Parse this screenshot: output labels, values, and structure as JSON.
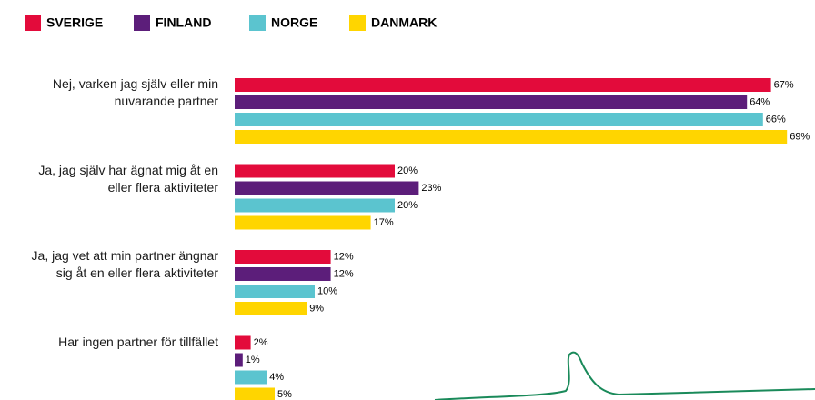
{
  "chart_data": {
    "type": "bar",
    "orientation": "horizontal",
    "categories": [
      "Nej, varken jag själv eller min nuvarande partner",
      "Ja, jag själv har ägnat mig åt en eller flera aktiviteter",
      "Ja, jag vet att min partner ängnar sig åt en eller flera aktiviteter",
      "Har ingen partner för tillfället"
    ],
    "series": [
      {
        "name": "SVERIGE",
        "color": "#e30b3b",
        "values": [
          67,
          20,
          12,
          2
        ],
        "value_labels": [
          "67%",
          "20%",
          "12%",
          "2%"
        ]
      },
      {
        "name": "FINLAND",
        "color": "#5c1e7a",
        "values": [
          64,
          23,
          12,
          1
        ],
        "value_labels": [
          "64%",
          "23%",
          "12%",
          "1%"
        ]
      },
      {
        "name": "NORGE",
        "color": "#5bc4cf",
        "values": [
          66,
          20,
          10,
          4
        ],
        "value_labels": [
          "66%",
          "20%",
          "10%",
          "4%"
        ]
      },
      {
        "name": "DANMARK",
        "color": "#ffd500",
        "values": [
          69,
          17,
          9,
          5
        ],
        "value_labels": [
          "69%",
          "17%",
          "9%",
          "5%"
        ]
      }
    ],
    "legend": "top-left"
  }
}
